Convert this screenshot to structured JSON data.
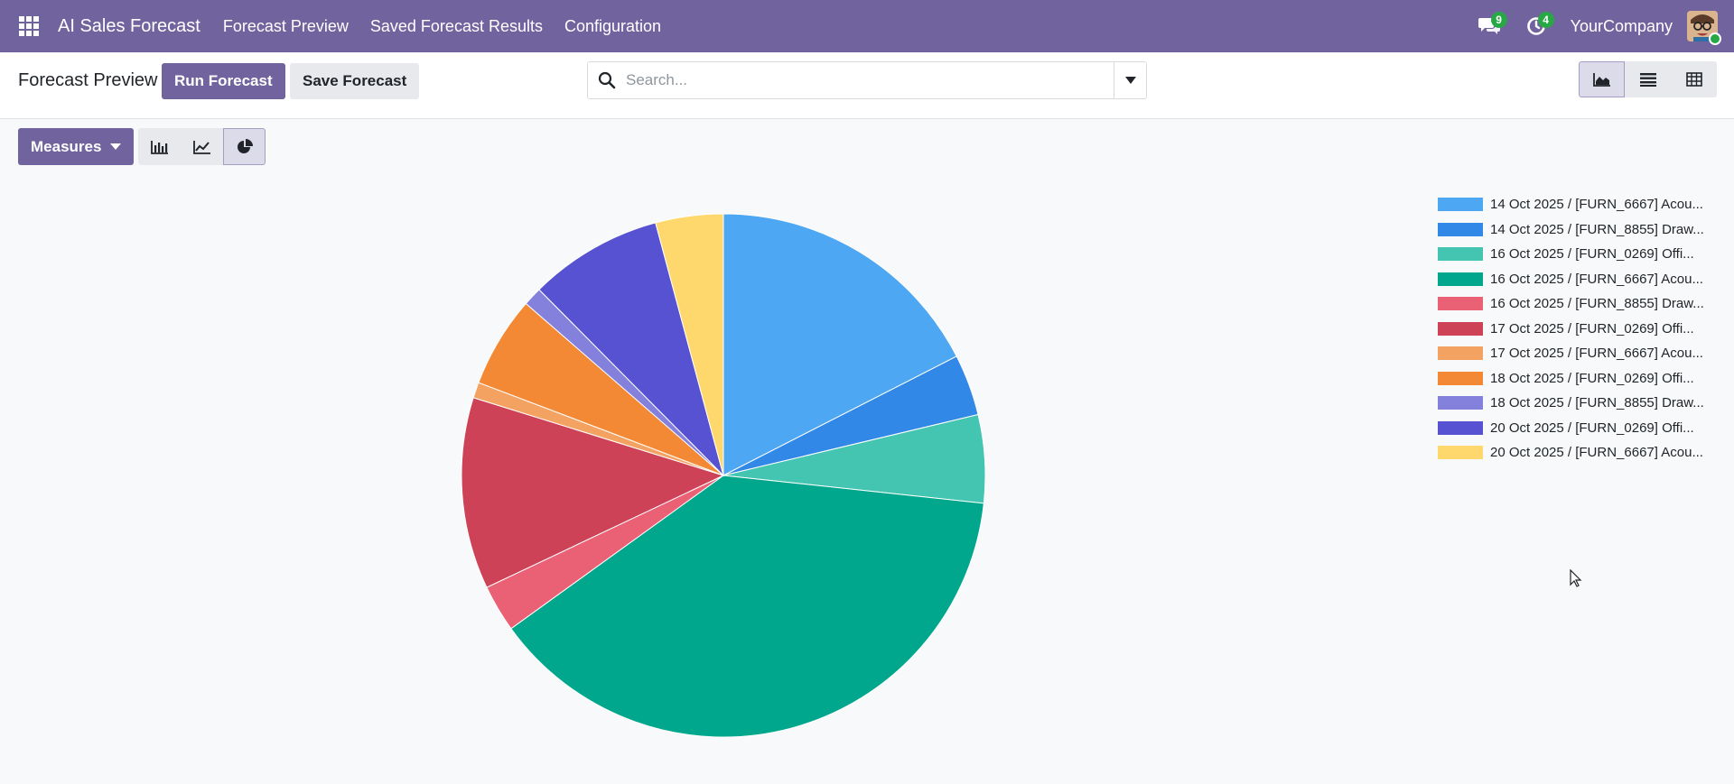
{
  "navbar": {
    "app_name": "AI Sales Forecast",
    "menus": [
      "Forecast Preview",
      "Saved Forecast Results",
      "Configuration"
    ],
    "messages_count": "9",
    "activities_count": "4",
    "company": "YourCompany",
    "icons": [
      "apps-grid-icon",
      "chat-icon",
      "clock-icon"
    ]
  },
  "control_panel": {
    "breadcrumb": "Forecast Preview",
    "run_label": "Run Forecast",
    "save_label": "Save Forecast",
    "search_placeholder": "Search...",
    "views": [
      "graph",
      "list",
      "pivot"
    ],
    "active_view": "graph"
  },
  "graph_toolbar": {
    "measures_label": "Measures",
    "modes": [
      "bar",
      "line",
      "pie"
    ],
    "active_mode": "pie"
  },
  "chart_data": {
    "type": "pie",
    "categories": [
      "14 Oct 2025 / [FURN_6667] Acou...",
      "14 Oct 2025 / [FURN_8855] Draw...",
      "16 Oct 2025 / [FURN_0269] Offi...",
      "16 Oct 2025 / [FURN_6667] Acou...",
      "16 Oct 2025 / [FURN_8855] Draw...",
      "17 Oct 2025 / [FURN_0269] Offi...",
      "17 Oct 2025 / [FURN_6667] Acou...",
      "18 Oct 2025 / [FURN_0269] Offi...",
      "18 Oct 2025 / [FURN_8855] Draw...",
      "20 Oct 2025 / [FURN_0269] Offi...",
      "20 Oct 2025 / [FURN_6667] Acou..."
    ],
    "values": [
      18.0,
      3.9,
      5.6,
      39.5,
      3.0,
      12.2,
      1.0,
      5.8,
      1.2,
      8.5,
      4.3
    ],
    "colors": [
      "#4ea7f2",
      "#3188e6",
      "#43c5b1",
      "#00a78d",
      "#ea6175",
      "#ce4257",
      "#f4a261",
      "#f48935",
      "#8481dd",
      "#5752d1",
      "#ffd86d"
    ],
    "legend": "right"
  }
}
